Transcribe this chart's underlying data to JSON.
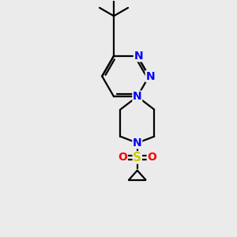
{
  "background_color": "#ebebeb",
  "bond_color": "#000000",
  "nitrogen_color": "#0000ff",
  "sulfur_color": "#cccc00",
  "oxygen_color": "#ff0000",
  "carbon_color": "#000000",
  "line_width": 1.6,
  "font_size": 10,
  "figsize": [
    3.0,
    3.0
  ],
  "dpi": 100,
  "xlim": [
    0,
    10
  ],
  "ylim": [
    0,
    10
  ]
}
